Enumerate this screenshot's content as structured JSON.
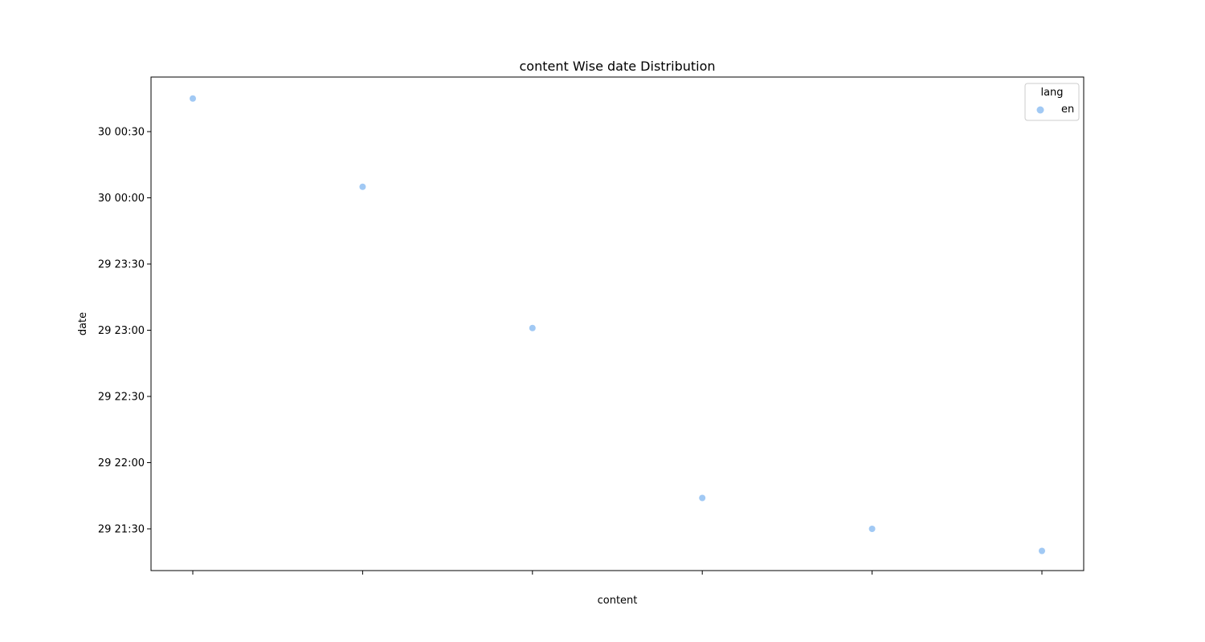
{
  "chart_data": {
    "type": "scatter",
    "title": "content Wise date Distribution",
    "xlabel": "content",
    "ylabel": "date",
    "y_ticks": [
      "29 21:30",
      "29 22:00",
      "29 22:30",
      "29 23:00",
      "29 23:30",
      "30 00:00",
      "30 00:30"
    ],
    "x_tick_labels_note": "overlapping illegible text",
    "legend": {
      "title": "lang",
      "entries": [
        "en"
      ],
      "position": "top-right"
    },
    "grid": false,
    "series": [
      {
        "name": "en",
        "color": "#a1c9f4",
        "points": [
          {
            "x": 0,
            "y": "30 00:45"
          },
          {
            "x": 1,
            "y": "30 00:05"
          },
          {
            "x": 2,
            "y": "29 23:01"
          },
          {
            "x": 3,
            "y": "29 21:44"
          },
          {
            "x": 4,
            "y": "29 21:30"
          },
          {
            "x": 5,
            "y": "29 21:20"
          }
        ]
      }
    ]
  }
}
